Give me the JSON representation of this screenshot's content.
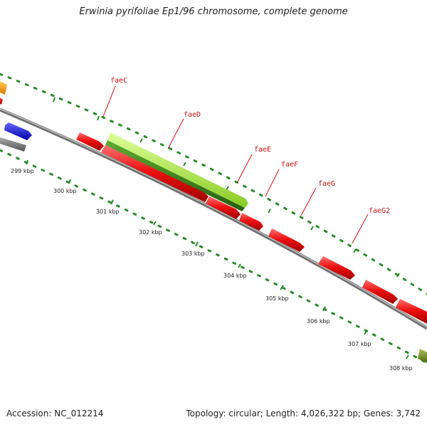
{
  "title": "Erwinia pyrifoliae Ep1/96 chromosome, complete genome",
  "footer": {
    "accession": "Accession: NC_012214",
    "summary": "Topology: circular; Length: 4,026,322 bp; Genes: 3,742"
  },
  "colors": {
    "backbone": "#8f8f8f",
    "tick": "#2a8a2a",
    "gene_red": "#ee1111",
    "gene_green_light": "#a8e63a",
    "gene_green_dark": "#3f8a1f",
    "gene_blue": "#1515e8",
    "gene_gray": "#777777",
    "gene_orange": "#ff9900",
    "gene_olive": "#6e8f2a",
    "gene_label": "#cc1111"
  },
  "kbp_labels": [
    "299 kbp",
    "300 kbp",
    "301 kbp",
    "302 kbp",
    "303 kbp",
    "304 kbp",
    "305 kbp",
    "306 kbp",
    "307 kbp",
    "308 kbp"
  ],
  "gene_labels": [
    "faeC",
    "faeD",
    "faeE",
    "faeF",
    "faeG",
    "faeG2"
  ]
}
